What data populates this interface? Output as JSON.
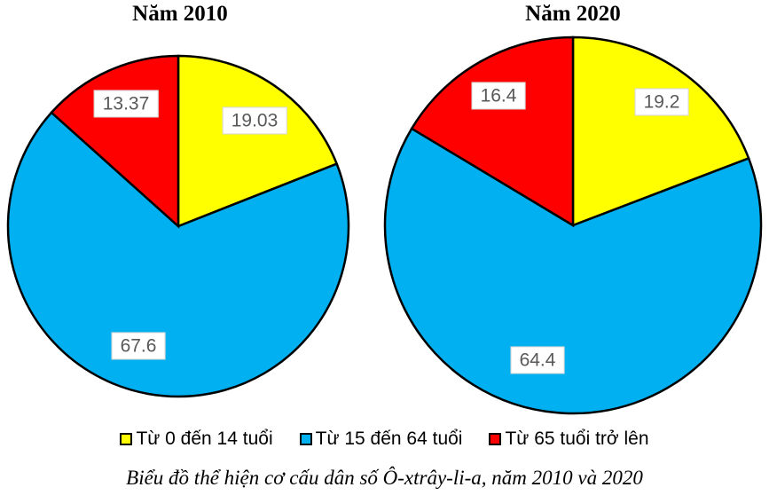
{
  "chart_data": [
    {
      "type": "pie",
      "title": "Năm 2010",
      "categories": [
        "Từ 0 đến 14 tuổi",
        "Từ 15 đến 64 tuổi",
        "Từ 65 tuổi trở lên"
      ],
      "values": [
        19.03,
        67.6,
        13.37
      ],
      "value_labels": [
        "19.03",
        "67.6",
        "13.37"
      ],
      "colors": [
        "#FFFF00",
        "#00B0F0",
        "#FF0000"
      ],
      "start_angle_deg": 0,
      "direction": "clockwise",
      "slice_border_color": "#000000"
    },
    {
      "type": "pie",
      "title": "Năm 2020",
      "categories": [
        "Từ 0 đến 14 tuổi",
        "Từ 15 đến 64 tuổi",
        "Từ 65 tuổi trở lên"
      ],
      "values": [
        19.2,
        64.4,
        16.4
      ],
      "value_labels": [
        "19.2",
        "64.4",
        "16.4"
      ],
      "colors": [
        "#FFFF00",
        "#00B0F0",
        "#FF0000"
      ],
      "start_angle_deg": 0,
      "direction": "clockwise",
      "slice_border_color": "#000000"
    }
  ],
  "legend": {
    "position": "bottom",
    "items": [
      {
        "label": "Từ 0 đến 14 tuổi",
        "color": "#FFFF00"
      },
      {
        "label": "Từ 15 đến 64 tuổi",
        "color": "#00B0F0"
      },
      {
        "label": "Từ 65 tuổi trở lên",
        "color": "#FF0000"
      }
    ]
  },
  "caption": "Biểu đồ thể hiện cơ cấu dân số Ô-xtrây-li-a, năm 2010 và 2020",
  "styles": {
    "value_label_text_color": "#595959",
    "value_label_background": "#FFFFFF",
    "title_color": "#000000"
  }
}
